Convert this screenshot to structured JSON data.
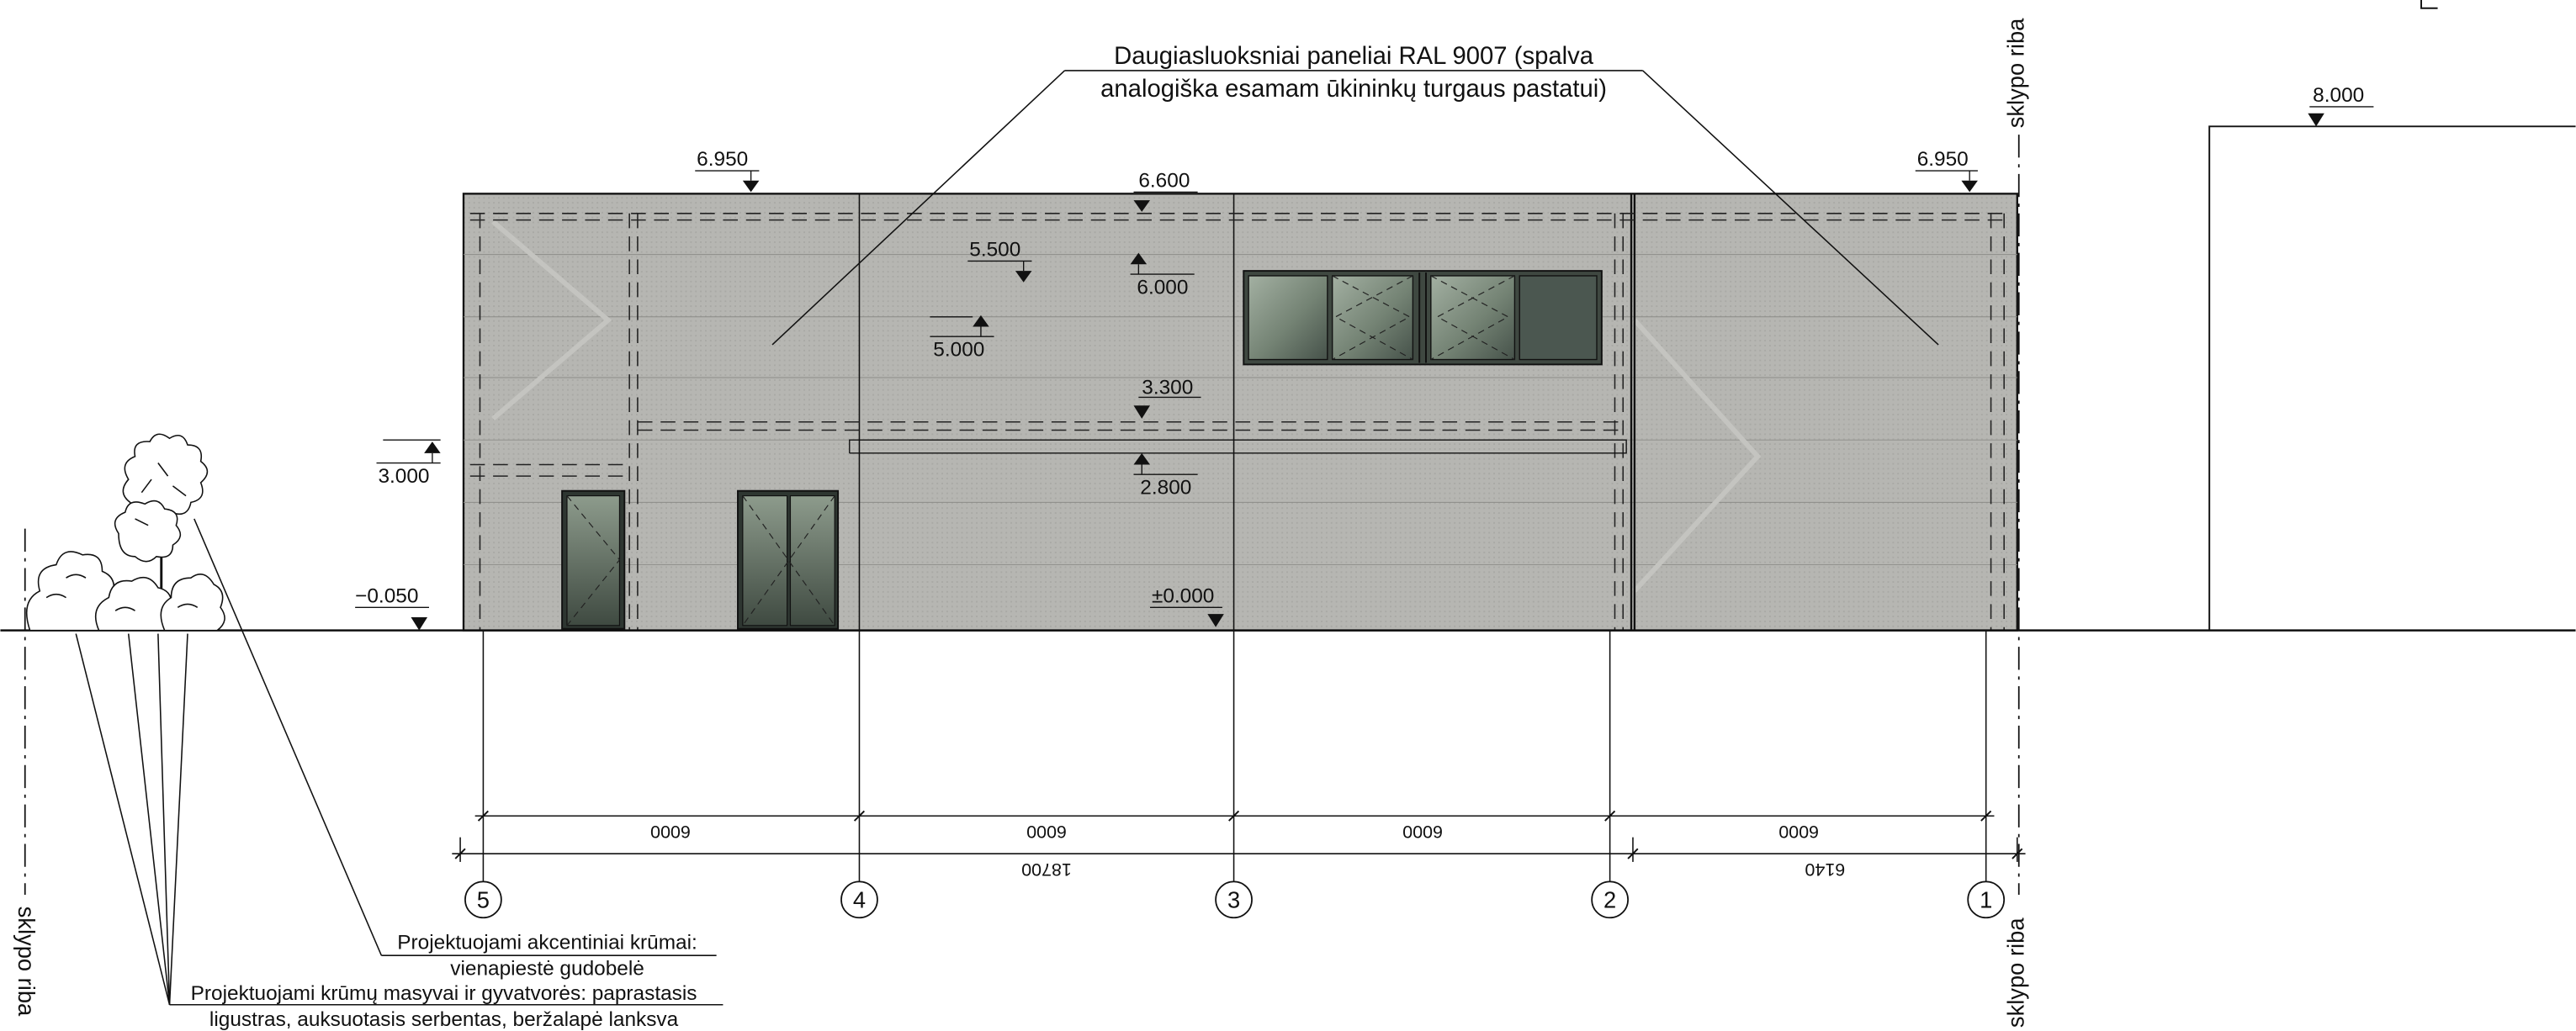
{
  "title_note": {
    "line1": "Daugiasluoksniai paneliai RAL 9007 (spalva",
    "line2": "analogiška esamam ūkininkų turgaus pastatui)"
  },
  "boundary_label": "sklypo riba",
  "levels": {
    "roof_left": "6.950",
    "roof_mid": "6.600",
    "roof_right": "6.950",
    "neighbor": "8.000",
    "l5500": "5.500",
    "l6000": "6.000",
    "l5000": "5.000",
    "l3300": "3.300",
    "l3000": "3.000",
    "l2800": "2.800",
    "ground_neg": "−0.050",
    "zero": "±0.000"
  },
  "dimensions": {
    "bays": [
      "6000",
      "6000",
      "6000",
      "6000"
    ],
    "total_left": "18700",
    "total_right": "6140"
  },
  "axes": [
    "5",
    "4",
    "3",
    "2",
    "1"
  ],
  "notes": {
    "accent_shrubs_1": "Projektuojami akcentiniai krūmai:",
    "accent_shrubs_2": "vienapiestė gudobelė",
    "hedges_1": "Projektuojami krūmų masyvai ir gyvatvorės: paprastasis",
    "hedges_2": "ligustras, auksuotasis serbentas, beržalapė lanksva"
  },
  "colors": {
    "panel": "#b4b4b0",
    "glass_light": "#98a697",
    "glass_dark": "#4e5a4f",
    "line": "#111111"
  }
}
